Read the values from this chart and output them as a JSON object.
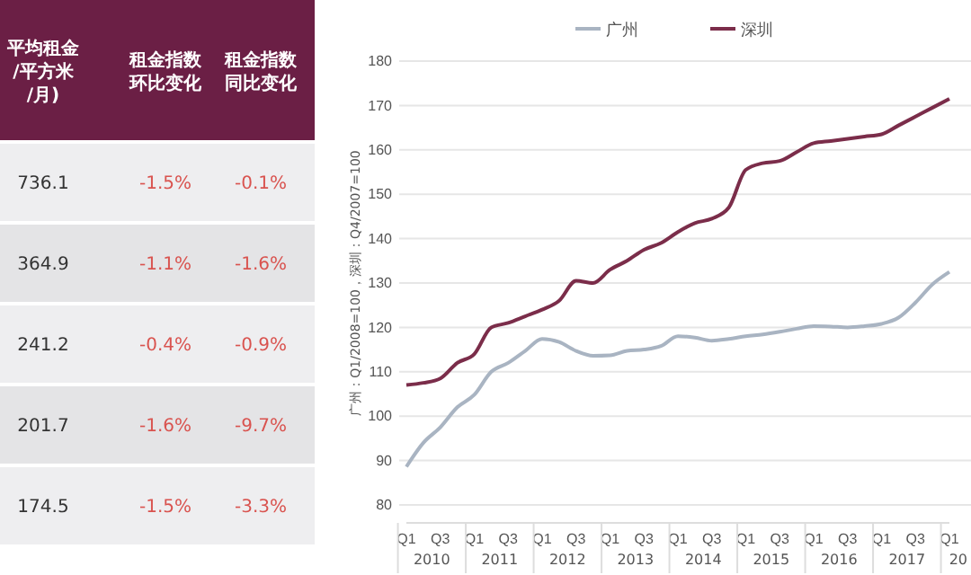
{
  "chart_data": [
    {
      "type": "other",
      "annotations": [
        "平均租金/平方米/月)",
        "租金指数环比变化",
        "租金指数同比变化",
        "736.1",
        "-1.5%",
        "-0.1%",
        "364.9",
        "-1.1%",
        "-1.6%",
        "241.2",
        "-0.4%",
        "-0.9%",
        "201.7",
        "-1.6%",
        "-9.7%",
        "174.5",
        "-1.5%",
        "-3.3%"
      ]
    },
    {
      "type": "line",
      "ylabel": "广州：Q1/2008=100，深圳：Q4/2007=100",
      "categories": [
        "Q1",
        null,
        "Q3",
        null,
        "Q1",
        null,
        "Q3",
        null,
        "Q1",
        null,
        "Q3",
        null,
        "Q1",
        null,
        "Q3",
        null,
        "Q1",
        null,
        "Q3",
        null,
        "Q1",
        null,
        "Q3",
        null,
        "Q1",
        null,
        "Q3",
        null,
        "Q1",
        null,
        "Q3",
        null,
        "Q1"
      ],
      "annotations": [
        "2010",
        "2011",
        "2012",
        "2013",
        "2014",
        "2015",
        "2016",
        "2017",
        "20"
      ],
      "series": [
        {
          "name": "广州",
          "color": "#a9b4c2",
          "values": [
            88.6,
            94,
            97.5,
            102,
            104.8,
            110,
            112,
            114.7,
            117.4,
            116.7,
            114.7,
            113.6,
            113.7,
            114.7,
            115,
            115.8,
            118,
            117.7,
            117,
            117.4,
            118,
            118.4,
            119,
            119.7,
            120.3,
            120.2,
            120,
            120.3,
            120.8,
            122.2,
            125.6,
            129.7,
            132.5
          ]
        },
        {
          "name": "深圳",
          "color": "#7b2d4a",
          "values": [
            107,
            107.5,
            108.5,
            112,
            114,
            120,
            121,
            122.5,
            124,
            126,
            130.5,
            130,
            133,
            135,
            137.5,
            139,
            141.5,
            143.5,
            144.5,
            147,
            155.5,
            157,
            157.5,
            159.5,
            161.5,
            162,
            162.5,
            163,
            163.5,
            165.5,
            167.5,
            169.5,
            171.5
          ]
        }
      ],
      "ylim": [
        80,
        180
      ],
      "yticks": [
        80,
        90,
        100,
        110,
        120,
        130,
        140,
        150,
        160,
        170,
        180
      ],
      "grid": "y",
      "legend": "top",
      "line_style": "solid",
      "marker": "none"
    }
  ]
}
